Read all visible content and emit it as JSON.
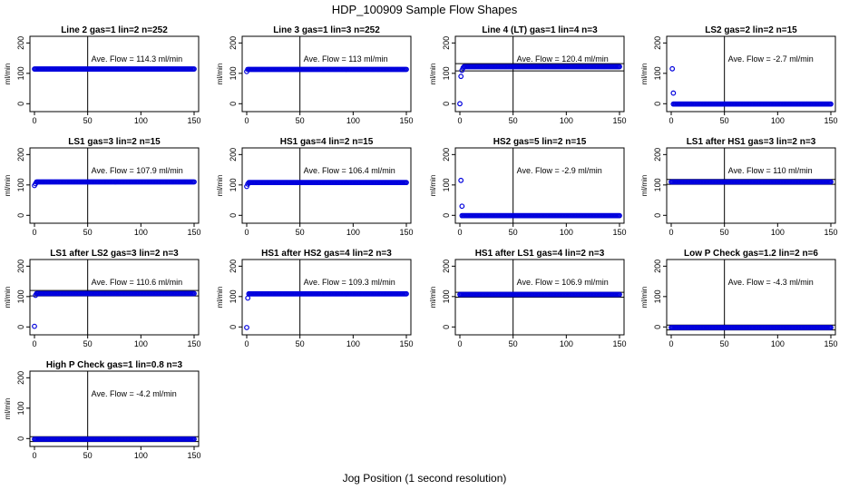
{
  "figure": {
    "title": "HDP_100909  Sample Flow Shapes",
    "xlabel": "Jog Position (1 second resolution)"
  },
  "colors": {
    "points": "#0000dd",
    "axes": "#000000"
  },
  "chart_data": [
    {
      "type": "scatter",
      "title": "Line 2 gas=1 lin=2 n=252",
      "ylabel": "ml/min",
      "annotation": "Ave. Flow =  114.3  ml/min",
      "ave_flow": 114.3,
      "xlim": [
        0,
        150
      ],
      "ylim": [
        -20,
        210
      ],
      "xticks": [
        0,
        50,
        100,
        150
      ],
      "yticks": [
        0,
        100,
        200
      ],
      "marker_x": 50,
      "reference_lines": [],
      "points": {
        "x_start": 0,
        "x_end": 150,
        "y": 114.3,
        "initial": []
      }
    },
    {
      "type": "scatter",
      "title": "Line 3 gas=1 lin=3 n=252",
      "ylabel": "ml/min",
      "annotation": "Ave. Flow =  113  ml/min",
      "ave_flow": 113,
      "xlim": [
        0,
        150
      ],
      "ylim": [
        -20,
        210
      ],
      "xticks": [
        0,
        50,
        100,
        150
      ],
      "yticks": [
        0,
        100,
        200
      ],
      "marker_x": 50,
      "reference_lines": [],
      "points": {
        "x_start": 1,
        "x_end": 150,
        "y": 113,
        "initial": [
          [
            0,
            106
          ]
        ]
      }
    },
    {
      "type": "scatter",
      "title": "Line 4 (LT) gas=1 lin=4 n=3",
      "ylabel": "ml/min",
      "annotation": "Ave. Flow =  120.4  ml/min",
      "ave_flow": 120.4,
      "xlim": [
        0,
        150
      ],
      "ylim": [
        -20,
        210
      ],
      "xticks": [
        0,
        50,
        100,
        150
      ],
      "yticks": [
        0,
        100,
        200
      ],
      "marker_x": 50,
      "reference_lines": [
        108,
        132
      ],
      "points": {
        "x_start": 4,
        "x_end": 150,
        "y": 122,
        "initial": [
          [
            0,
            0
          ],
          [
            1,
            90
          ],
          [
            2,
            110
          ],
          [
            3,
            118
          ]
        ]
      }
    },
    {
      "type": "scatter",
      "title": "LS2 gas=2 lin=2 n=15",
      "ylabel": "ml/min",
      "annotation": "Ave. Flow =  -2.7  ml/min",
      "ave_flow": -2.7,
      "xlim": [
        0,
        150
      ],
      "ylim": [
        -20,
        210
      ],
      "xticks": [
        0,
        50,
        100,
        150
      ],
      "yticks": [
        0,
        100,
        200
      ],
      "marker_x": 50,
      "reference_lines": [],
      "points": {
        "x_start": 2,
        "x_end": 150,
        "y": -1,
        "initial": [
          [
            1,
            115
          ],
          [
            2,
            35
          ]
        ]
      }
    },
    {
      "type": "scatter",
      "title": "LS1 gas=3 lin=2 n=15",
      "ylabel": "ml/min",
      "annotation": "Ave. Flow =  107.9  ml/min",
      "ave_flow": 107.9,
      "xlim": [
        0,
        150
      ],
      "ylim": [
        -20,
        210
      ],
      "xticks": [
        0,
        50,
        100,
        150
      ],
      "yticks": [
        0,
        100,
        200
      ],
      "marker_x": 50,
      "reference_lines": [],
      "points": {
        "x_start": 2,
        "x_end": 150,
        "y": 110,
        "initial": [
          [
            0,
            98
          ],
          [
            1,
            104
          ]
        ]
      }
    },
    {
      "type": "scatter",
      "title": "HS1 gas=4 lin=2 n=15",
      "ylabel": "ml/min",
      "annotation": "Ave. Flow =  106.4  ml/min",
      "ave_flow": 106.4,
      "xlim": [
        0,
        150
      ],
      "ylim": [
        -20,
        210
      ],
      "xticks": [
        0,
        50,
        100,
        150
      ],
      "yticks": [
        0,
        100,
        200
      ],
      "marker_x": 50,
      "reference_lines": [],
      "points": {
        "x_start": 2,
        "x_end": 150,
        "y": 108,
        "initial": [
          [
            0,
            95
          ],
          [
            1,
            103
          ]
        ]
      }
    },
    {
      "type": "scatter",
      "title": "HS2 gas=5 lin=2 n=15",
      "ylabel": "ml/min",
      "annotation": "Ave. Flow =  -2.9  ml/min",
      "ave_flow": -2.9,
      "xlim": [
        0,
        150
      ],
      "ylim": [
        -20,
        210
      ],
      "xticks": [
        0,
        50,
        100,
        150
      ],
      "yticks": [
        0,
        100,
        200
      ],
      "marker_x": 50,
      "reference_lines": [],
      "points": {
        "x_start": 2,
        "x_end": 150,
        "y": -1,
        "initial": [
          [
            1,
            115
          ],
          [
            2,
            30
          ]
        ]
      }
    },
    {
      "type": "scatter",
      "title": "LS1 after HS1 gas=3 lin=2 n=3",
      "ylabel": "ml/min",
      "annotation": "Ave. Flow =  110  ml/min",
      "ave_flow": 110,
      "xlim": [
        0,
        150
      ],
      "ylim": [
        -20,
        210
      ],
      "xticks": [
        0,
        50,
        100,
        150
      ],
      "yticks": [
        0,
        100,
        200
      ],
      "marker_x": 50,
      "reference_lines": [
        102,
        118
      ],
      "points": {
        "x_start": 0,
        "x_end": 150,
        "y": 110,
        "initial": []
      }
    },
    {
      "type": "scatter",
      "title": "LS1 after LS2 gas=3 lin=2 n=3",
      "ylabel": "ml/min",
      "annotation": "Ave. Flow =  110.6  ml/min",
      "ave_flow": 110.6,
      "xlim": [
        0,
        150
      ],
      "ylim": [
        -20,
        210
      ],
      "xticks": [
        0,
        50,
        100,
        150
      ],
      "yticks": [
        0,
        100,
        200
      ],
      "marker_x": 50,
      "reference_lines": [
        102,
        120
      ],
      "points": {
        "x_start": 2,
        "x_end": 150,
        "y": 110,
        "initial": [
          [
            0,
            2
          ],
          [
            1,
            104
          ]
        ]
      }
    },
    {
      "type": "scatter",
      "title": "HS1 after HS2 gas=4 lin=2 n=3",
      "ylabel": "ml/min",
      "annotation": "Ave. Flow =  109.3  ml/min",
      "ave_flow": 109.3,
      "xlim": [
        0,
        150
      ],
      "ylim": [
        -20,
        210
      ],
      "xticks": [
        0,
        50,
        100,
        150
      ],
      "yticks": [
        0,
        100,
        200
      ],
      "marker_x": 50,
      "reference_lines": [],
      "points": {
        "x_start": 2,
        "x_end": 150,
        "y": 109,
        "initial": [
          [
            0,
            -2
          ],
          [
            1,
            95
          ]
        ]
      }
    },
    {
      "type": "scatter",
      "title": "HS1 after LS1 gas=4 lin=2 n=3",
      "ylabel": "ml/min",
      "annotation": "Ave. Flow =  106.9  ml/min",
      "ave_flow": 106.9,
      "xlim": [
        0,
        150
      ],
      "ylim": [
        -20,
        210
      ],
      "xticks": [
        0,
        50,
        100,
        150
      ],
      "yticks": [
        0,
        100,
        200
      ],
      "marker_x": 50,
      "reference_lines": [
        98,
        114
      ],
      "points": {
        "x_start": 0,
        "x_end": 150,
        "y": 106.9,
        "initial": []
      }
    },
    {
      "type": "scatter",
      "title": "Low P Check gas=1.2 lin=2 n=6",
      "ylabel": "ml/min",
      "annotation": "Ave. Flow =  -4.3  ml/min",
      "ave_flow": -4.3,
      "xlim": [
        0,
        150
      ],
      "ylim": [
        -20,
        210
      ],
      "xticks": [
        0,
        50,
        100,
        150
      ],
      "yticks": [
        0,
        100,
        200
      ],
      "marker_x": 50,
      "reference_lines": [
        -10,
        6
      ],
      "points": {
        "x_start": 0,
        "x_end": 150,
        "y": -2,
        "initial": []
      }
    },
    {
      "type": "scatter",
      "title": "High P Check gas=1 lin=0.8 n=3",
      "ylabel": "ml/min",
      "annotation": "Ave. Flow =  -4.2  ml/min",
      "ave_flow": -4.2,
      "xlim": [
        0,
        150
      ],
      "ylim": [
        -20,
        210
      ],
      "xticks": [
        0,
        50,
        100,
        150
      ],
      "yticks": [
        0,
        100,
        200
      ],
      "marker_x": 50,
      "reference_lines": [
        -10,
        6
      ],
      "points": {
        "x_start": 0,
        "x_end": 150,
        "y": -2,
        "initial": []
      }
    }
  ]
}
